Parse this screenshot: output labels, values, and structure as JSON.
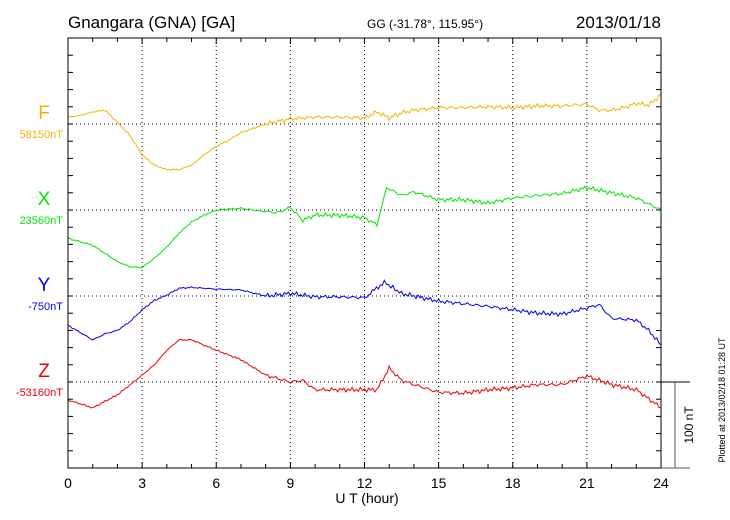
{
  "header": {
    "station": "Gnangara (GNA)  [GA]",
    "coords": "GG (-31.78°, 115.95°)",
    "date": "2013/01/18"
  },
  "footer": {
    "plotted": "Plotted at 2013/02/18 01:28 UT",
    "scale_label": "100 nT"
  },
  "chart_data": {
    "type": "line",
    "title": "Gnangara (GNA)  [GA]",
    "xlabel": "U T (hour)",
    "ylabel": "",
    "xlim": [
      0,
      24
    ],
    "x_ticks": [
      "0",
      "3",
      "6",
      "9",
      "12",
      "15",
      "18",
      "21",
      "24"
    ],
    "scale_nT": 100,
    "grid": true,
    "series": [
      {
        "name": "F",
        "baseline_label": "58150nT",
        "color": "#f5b400",
        "x": [
          0,
          0.5,
          1,
          1.5,
          2,
          2.5,
          3,
          3.5,
          4,
          4.5,
          5,
          5.5,
          6,
          6.5,
          7,
          7.5,
          8,
          8.5,
          9,
          10,
          11,
          12,
          12.5,
          13,
          13.5,
          14,
          15,
          16,
          17,
          18,
          19,
          20,
          21,
          21.5,
          22,
          22.5,
          23,
          23.5,
          24
        ],
        "values": [
          8,
          10,
          14,
          16,
          2,
          -13,
          -36,
          -48,
          -53,
          -53,
          -48,
          -36,
          -26,
          -19,
          -10,
          -5,
          0,
          3,
          6,
          8,
          8,
          7,
          14,
          7,
          13,
          16,
          19,
          19,
          20,
          19,
          21,
          21,
          23,
          16,
          16,
          19,
          24,
          22,
          34
        ]
      },
      {
        "name": "X",
        "baseline_label": "23560nT",
        "color": "#00e600",
        "x": [
          0,
          1,
          2,
          2.5,
          3,
          3.5,
          4,
          4.5,
          5,
          5.5,
          6,
          7,
          8,
          8.5,
          9,
          9.5,
          10,
          11,
          12,
          12.5,
          12.9,
          13.5,
          14,
          15,
          16,
          17,
          18,
          19,
          20,
          21,
          22,
          23,
          24
        ],
        "values": [
          -33,
          -41,
          -60,
          -66,
          -67,
          -56,
          -43,
          -27,
          -14,
          -6,
          0,
          2,
          -2,
          -3,
          3,
          -12,
          -6,
          -6,
          -9,
          -17,
          26,
          17,
          21,
          12,
          12,
          8,
          14,
          17,
          19,
          26,
          20,
          14,
          0
        ]
      },
      {
        "name": "Y",
        "baseline_label": "-750nT",
        "color": "#0000ee",
        "x": [
          0,
          1,
          1.5,
          2,
          2.5,
          3,
          3.5,
          4,
          4.5,
          5,
          6,
          7,
          8,
          9,
          10,
          11,
          12,
          12.8,
          13.5,
          14,
          15,
          16,
          17,
          18,
          19,
          20,
          21,
          21.5,
          22,
          23,
          23.5,
          24
        ],
        "values": [
          -34,
          -51,
          -44,
          -40,
          -30,
          -16,
          -5,
          1,
          9,
          10,
          8,
          7,
          0,
          3,
          -1,
          -1,
          -2,
          16,
          3,
          0,
          -6,
          -9,
          -12,
          -16,
          -20,
          -21,
          -14,
          -10,
          -26,
          -28,
          -40,
          -57
        ]
      },
      {
        "name": "Z",
        "baseline_label": "-53160nT",
        "color": "#ee0000",
        "x": [
          0,
          1,
          2,
          3,
          3.5,
          4,
          4.5,
          5,
          6,
          7,
          8,
          9,
          9.5,
          10,
          11,
          12,
          12.5,
          13,
          13.5,
          14,
          15,
          16,
          17,
          18,
          19,
          20,
          21,
          22,
          23,
          24
        ],
        "values": [
          -21,
          -30,
          -15,
          8,
          20,
          37,
          49,
          49,
          37,
          26,
          8,
          0,
          2,
          -9,
          -9,
          -9,
          -9,
          16,
          2,
          -3,
          -12,
          -13,
          -9,
          -7,
          -3,
          -3,
          7,
          -3,
          -9,
          -30
        ]
      }
    ]
  }
}
